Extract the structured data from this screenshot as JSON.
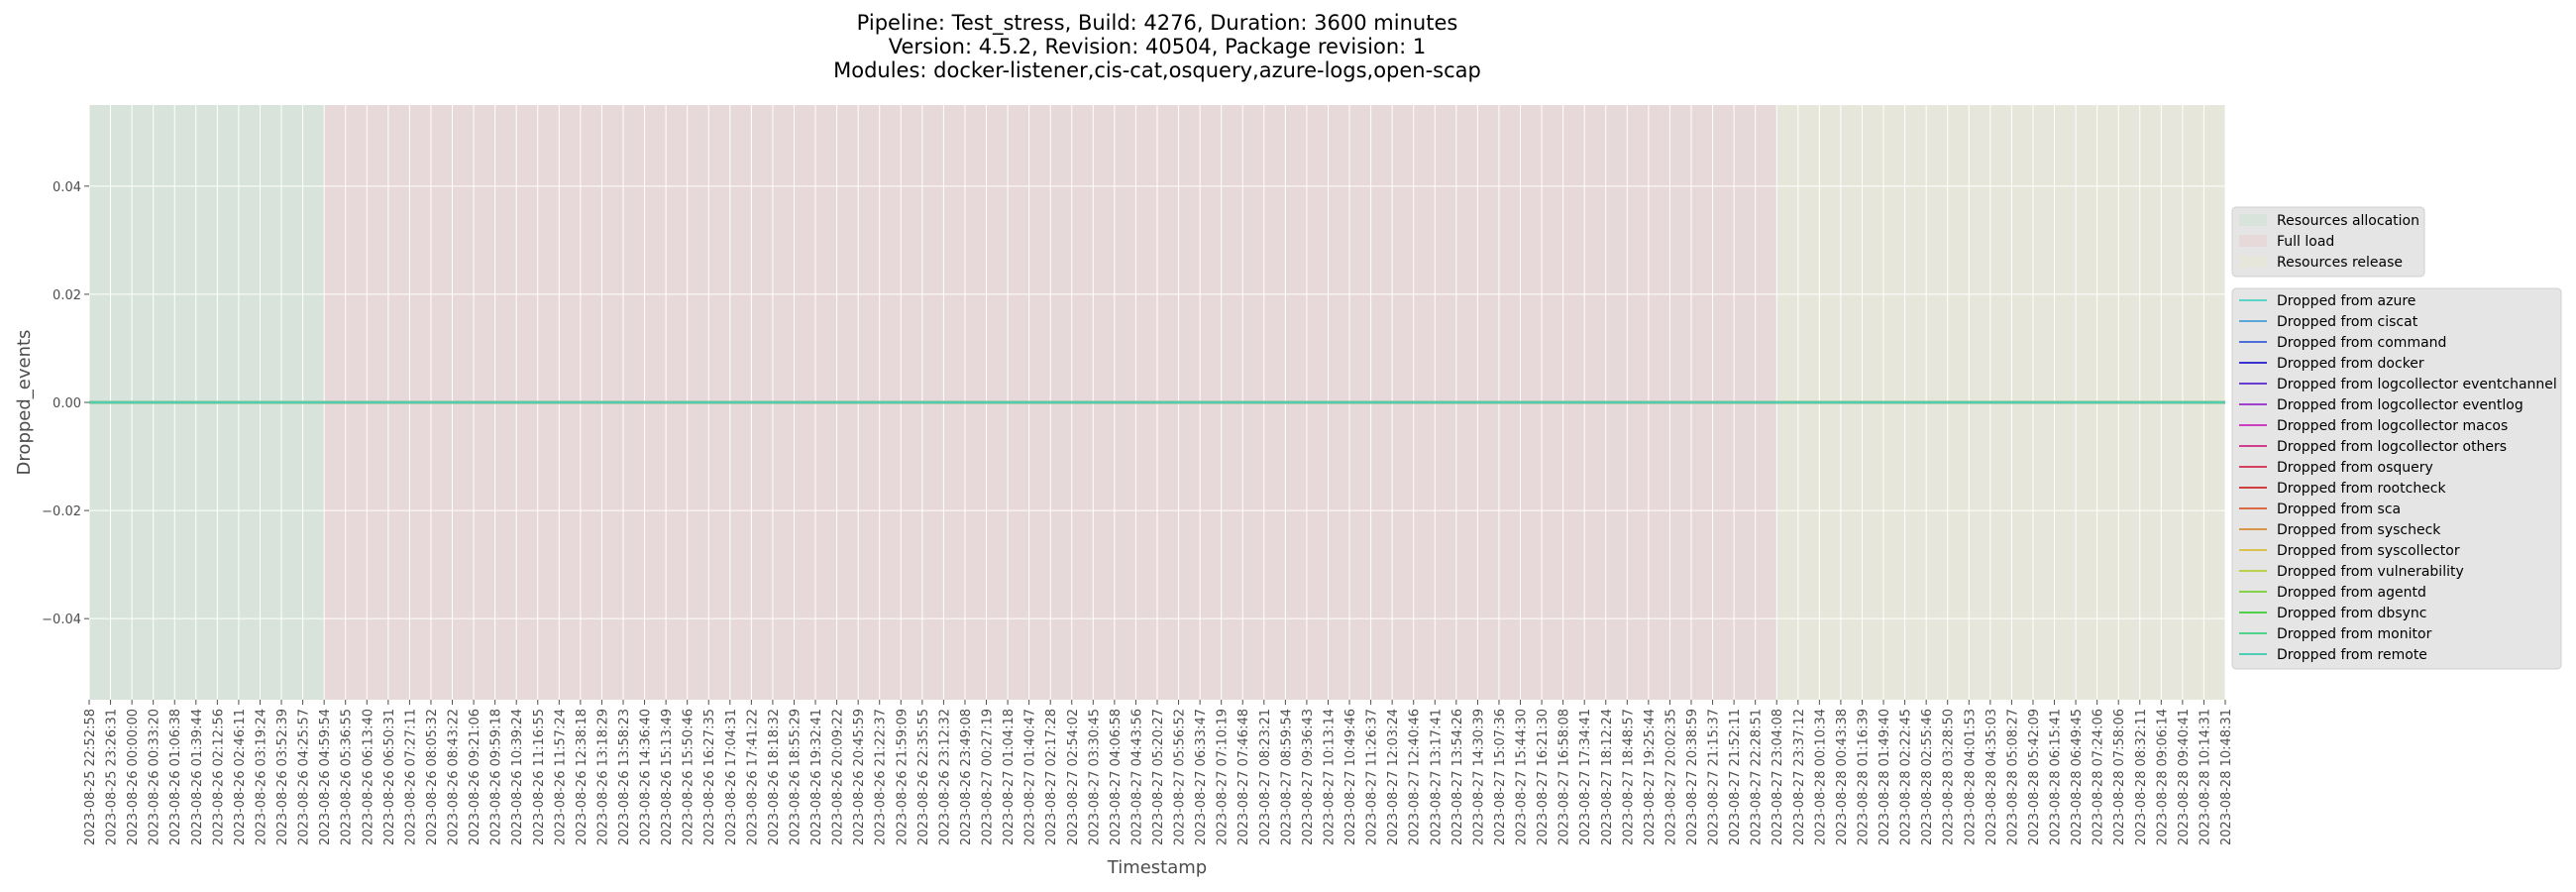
{
  "chart_data": {
    "type": "line",
    "title": [
      "Pipeline: Test_stress, Build: 4276, Duration: 3600 minutes",
      "Version: 4.5.2, Revision: 40504, Package revision: 1",
      "Modules: docker-listener,cis-cat,osquery,azure-logs,open-scap"
    ],
    "xlabel": "Timestamp",
    "ylabel": "Dropped_events",
    "ylim": [
      -0.055,
      0.055
    ],
    "yticks": [
      -0.04,
      -0.02,
      0.0,
      0.02,
      0.04
    ],
    "ytick_labels": [
      "−0.04",
      "−0.02",
      "0.00",
      "0.02",
      "0.04"
    ],
    "grid": true,
    "x_tick_labels": [
      "2023-08-25 22:52:58",
      "2023-08-25 23:26:31",
      "2023-08-26 00:00:00",
      "2023-08-26 00:33:20",
      "2023-08-26 01:06:38",
      "2023-08-26 01:39:44",
      "2023-08-26 02:12:56",
      "2023-08-26 02:46:11",
      "2023-08-26 03:19:24",
      "2023-08-26 03:52:39",
      "2023-08-26 04:25:57",
      "2023-08-26 04:59:54",
      "2023-08-26 05:36:55",
      "2023-08-26 06:13:40",
      "2023-08-26 06:50:31",
      "2023-08-26 07:27:11",
      "2023-08-26 08:05:32",
      "2023-08-26 08:43:22",
      "2023-08-26 09:21:06",
      "2023-08-26 09:59:18",
      "2023-08-26 10:39:24",
      "2023-08-26 11:16:55",
      "2023-08-26 11:57:24",
      "2023-08-26 12:38:18",
      "2023-08-26 13:18:29",
      "2023-08-26 13:58:23",
      "2023-08-26 14:36:40",
      "2023-08-26 15:13:49",
      "2023-08-26 15:50:46",
      "2023-08-26 16:27:35",
      "2023-08-26 17:04:31",
      "2023-08-26 17:41:22",
      "2023-08-26 18:18:32",
      "2023-08-26 18:55:29",
      "2023-08-26 19:32:41",
      "2023-08-26 20:09:22",
      "2023-08-26 20:45:59",
      "2023-08-26 21:22:37",
      "2023-08-26 21:59:09",
      "2023-08-26 22:35:55",
      "2023-08-26 23:12:32",
      "2023-08-26 23:49:08",
      "2023-08-27 00:27:19",
      "2023-08-27 01:04:18",
      "2023-08-27 01:40:47",
      "2023-08-27 02:17:28",
      "2023-08-27 02:54:02",
      "2023-08-27 03:30:45",
      "2023-08-27 04:06:58",
      "2023-08-27 04:43:56",
      "2023-08-27 05:20:27",
      "2023-08-27 05:56:52",
      "2023-08-27 06:33:47",
      "2023-08-27 07:10:19",
      "2023-08-27 07:46:48",
      "2023-08-27 08:23:21",
      "2023-08-27 08:59:54",
      "2023-08-27 09:36:43",
      "2023-08-27 10:13:14",
      "2023-08-27 10:49:46",
      "2023-08-27 11:26:37",
      "2023-08-27 12:03:24",
      "2023-08-27 12:40:46",
      "2023-08-27 13:17:41",
      "2023-08-27 13:54:26",
      "2023-08-27 14:30:39",
      "2023-08-27 15:07:36",
      "2023-08-27 15:44:30",
      "2023-08-27 16:21:30",
      "2023-08-27 16:58:08",
      "2023-08-27 17:34:41",
      "2023-08-27 18:12:24",
      "2023-08-27 18:48:57",
      "2023-08-27 19:25:44",
      "2023-08-27 20:02:35",
      "2023-08-27 20:38:59",
      "2023-08-27 21:15:37",
      "2023-08-27 21:52:11",
      "2023-08-27 22:28:51",
      "2023-08-27 23:04:08",
      "2023-08-27 23:37:12",
      "2023-08-28 00:10:34",
      "2023-08-28 00:43:38",
      "2023-08-28 01:16:39",
      "2023-08-28 01:49:40",
      "2023-08-28 02:22:45",
      "2023-08-28 02:55:46",
      "2023-08-28 03:28:50",
      "2023-08-28 04:01:53",
      "2023-08-28 04:35:03",
      "2023-08-28 05:08:27",
      "2023-08-28 05:42:09",
      "2023-08-28 06:15:41",
      "2023-08-28 06:49:45",
      "2023-08-28 07:24:06",
      "2023-08-28 07:58:06",
      "2023-08-28 08:32:11",
      "2023-08-28 09:06:14",
      "2023-08-28 09:40:41",
      "2023-08-28 10:14:31",
      "2023-08-28 10:48:31"
    ],
    "phases": [
      {
        "name": "Resources allocation",
        "start_tick": 0,
        "end_tick": 11,
        "color": "#d8e3db"
      },
      {
        "name": "Full load",
        "start_tick": 11,
        "end_tick": 79,
        "color": "#e7d8d9"
      },
      {
        "name": "Resources release",
        "start_tick": 79,
        "end_tick": 100,
        "color": "#e6e6da"
      }
    ],
    "series": [
      {
        "name": "Dropped from azure",
        "color": "#5bd3c6",
        "value": 0
      },
      {
        "name": "Dropped from ciscat",
        "color": "#5aa6d9",
        "value": 0
      },
      {
        "name": "Dropped from command",
        "color": "#4b6fd6",
        "value": 0
      },
      {
        "name": "Dropped from docker",
        "color": "#3b33d0",
        "value": 0
      },
      {
        "name": "Dropped from logcollector eventchannel",
        "color": "#6a3dd2",
        "value": 0
      },
      {
        "name": "Dropped from logcollector eventlog",
        "color": "#a03fd0",
        "value": 0
      },
      {
        "name": "Dropped from logcollector macos",
        "color": "#c93fbf",
        "value": 0
      },
      {
        "name": "Dropped from logcollector others",
        "color": "#d13e8e",
        "value": 0
      },
      {
        "name": "Dropped from osquery",
        "color": "#d4405e",
        "value": 0
      },
      {
        "name": "Dropped from rootcheck",
        "color": "#cf3e3e",
        "value": 0
      },
      {
        "name": "Dropped from sca",
        "color": "#d86a45",
        "value": 0
      },
      {
        "name": "Dropped from syscheck",
        "color": "#d9964a",
        "value": 0
      },
      {
        "name": "Dropped from syscollector",
        "color": "#d9c24e",
        "value": 0
      },
      {
        "name": "Dropped from vulnerability",
        "color": "#b8d24e",
        "value": 0
      },
      {
        "name": "Dropped from agentd",
        "color": "#86d24b",
        "value": 0
      },
      {
        "name": "Dropped from dbsync",
        "color": "#4fcf4a",
        "value": 0
      },
      {
        "name": "Dropped from monitor",
        "color": "#4fd28a",
        "value": 0
      },
      {
        "name": "Dropped from remote",
        "color": "#4fcdb4",
        "value": 0
      }
    ]
  }
}
